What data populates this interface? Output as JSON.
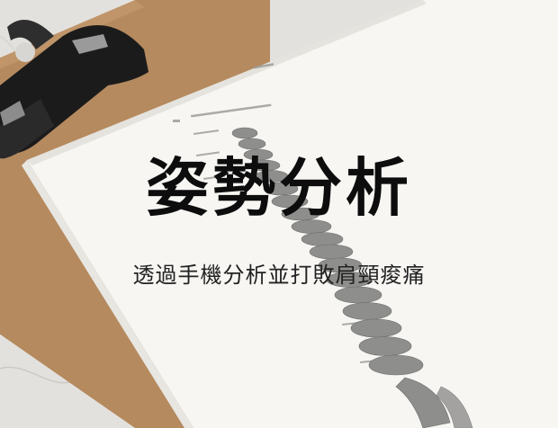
{
  "hero": {
    "title": "姿勢分析",
    "subtitle": "透過手機分析並打敗肩頸痠痛"
  },
  "illustration": {
    "subject": "clipboard-with-spine-diagram",
    "colors": {
      "marble": "#e2e0dc",
      "clipboard": "#b88a5e",
      "clip": "#1b1b1b",
      "paper": "#f7f6f3",
      "spine": "#8f8f8f",
      "title_text": "#0d0d0d"
    }
  }
}
